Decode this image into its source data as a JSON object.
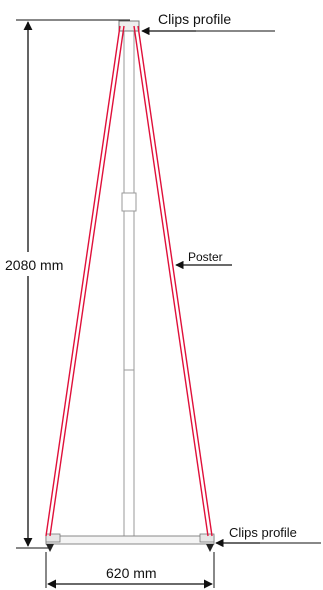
{
  "labels": {
    "clips_profile_top": "Clips profile",
    "clips_profile_bottom": "Clips profile",
    "poster": "Poster",
    "height": "2080 mm",
    "width": "620 mm"
  },
  "colors": {
    "poster_line": "#e0103a",
    "pole": "#9a9a9a",
    "dimension": "#111111"
  }
}
